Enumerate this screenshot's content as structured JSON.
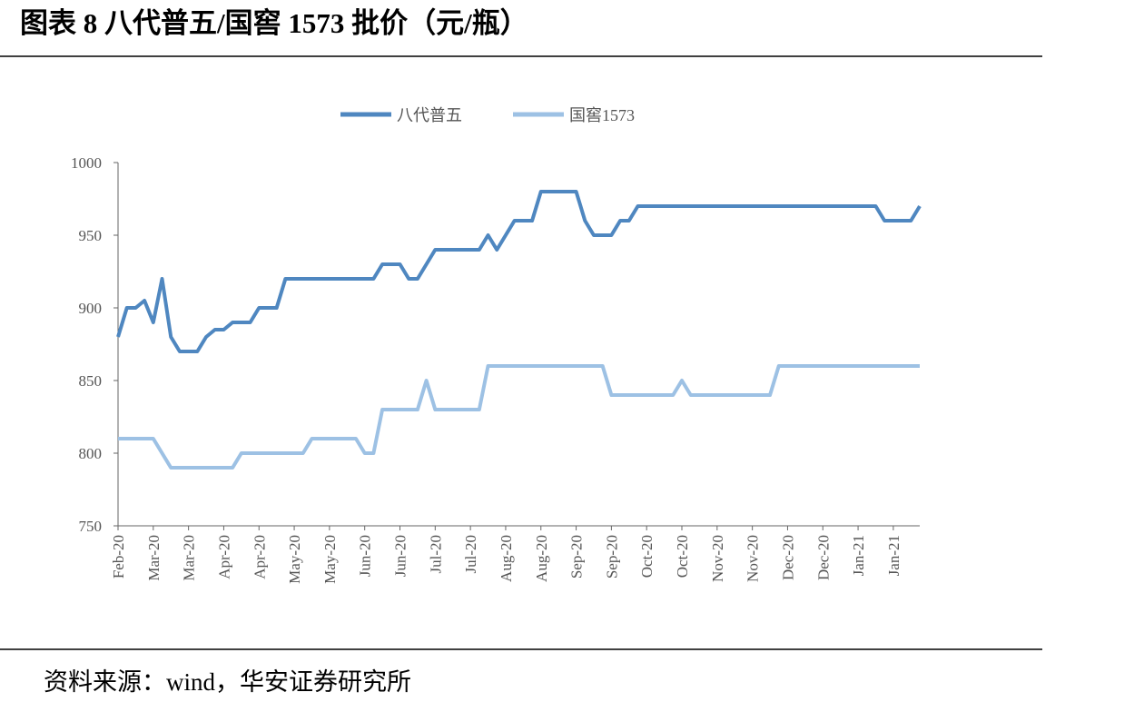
{
  "header": {
    "title": "图表 8 八代普五/国窖 1573 批价（元/瓶）"
  },
  "chart_data": {
    "type": "line",
    "legend": "top",
    "grid": false,
    "categories": [
      "Feb-20",
      null,
      null,
      null,
      "Mar-20",
      null,
      null,
      null,
      "Mar-20",
      null,
      null,
      null,
      "Apr-20",
      null,
      null,
      null,
      "Apr-20",
      null,
      null,
      null,
      "May-20",
      null,
      null,
      null,
      "May-20",
      null,
      null,
      null,
      "Jun-20",
      null,
      null,
      null,
      "Jun-20",
      null,
      null,
      null,
      "Jul-20",
      null,
      null,
      null,
      "Jul-20",
      null,
      null,
      null,
      "Aug-20",
      null,
      null,
      null,
      "Aug-20",
      null,
      null,
      null,
      "Sep-20",
      null,
      null,
      null,
      "Sep-20",
      null,
      null,
      null,
      "Oct-20",
      null,
      null,
      null,
      "Oct-20",
      null,
      null,
      null,
      "Nov-20",
      null,
      null,
      null,
      "Nov-20",
      null,
      null,
      null,
      "Dec-20",
      null,
      null,
      null,
      "Dec-20",
      null,
      null,
      null,
      "Jan-21",
      null,
      null,
      null,
      "Jan-21",
      null,
      null,
      null
    ],
    "series": [
      {
        "name": "八代普五",
        "color": "#4f87c0",
        "values": [
          880,
          900,
          900,
          905,
          890,
          920,
          880,
          870,
          870,
          870,
          880,
          885,
          885,
          890,
          890,
          890,
          900,
          900,
          900,
          920,
          920,
          920,
          920,
          920,
          920,
          920,
          920,
          920,
          920,
          920,
          930,
          930,
          930,
          920,
          920,
          930,
          940,
          940,
          940,
          940,
          940,
          940,
          950,
          940,
          950,
          960,
          960,
          960,
          980,
          980,
          980,
          980,
          980,
          960,
          950,
          950,
          950,
          960,
          960,
          970,
          970,
          970,
          970,
          970,
          970,
          970,
          970,
          970,
          970,
          970,
          970,
          970,
          970,
          970,
          970,
          970,
          970,
          970,
          970,
          970,
          970,
          970,
          970,
          970,
          970,
          970,
          970,
          960,
          960,
          960,
          960,
          970
        ]
      },
      {
        "name": "国窖1573",
        "color": "#9dc1e4",
        "values": [
          810,
          810,
          810,
          810,
          810,
          800,
          790,
          790,
          790,
          790,
          790,
          790,
          790,
          790,
          800,
          800,
          800,
          800,
          800,
          800,
          800,
          800,
          810,
          810,
          810,
          810,
          810,
          810,
          800,
          800,
          830,
          830,
          830,
          830,
          830,
          850,
          830,
          830,
          830,
          830,
          830,
          830,
          860,
          860,
          860,
          860,
          860,
          860,
          860,
          860,
          860,
          860,
          860,
          860,
          860,
          860,
          840,
          840,
          840,
          840,
          840,
          840,
          840,
          840,
          850,
          840,
          840,
          840,
          840,
          840,
          840,
          840,
          840,
          840,
          840,
          860,
          860,
          860,
          860,
          860,
          860,
          860,
          860,
          860,
          860,
          860,
          860,
          860,
          860,
          860,
          860,
          860
        ]
      }
    ],
    "ylim": [
      750,
      1000
    ],
    "yticks": [
      750,
      800,
      850,
      900,
      950,
      1000
    ]
  },
  "footer": {
    "source": "资料来源：wind，华安证券研究所"
  }
}
